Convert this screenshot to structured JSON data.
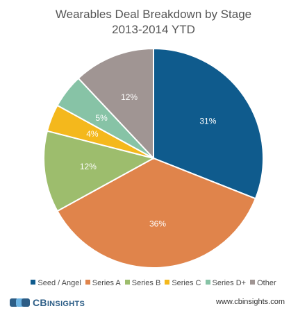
{
  "chart_data": {
    "type": "pie",
    "title_line1": "Wearables Deal Breakdown by Stage",
    "title_line2": "2013-2014 YTD",
    "slices": [
      {
        "label": "Seed / Angel",
        "value": 31,
        "display": "31%",
        "color": "#0f5b8d"
      },
      {
        "label": "Series A",
        "value": 36,
        "display": "36%",
        "color": "#e0844b"
      },
      {
        "label": "Series B",
        "value": 12,
        "display": "12%",
        "color": "#9dbd6d"
      },
      {
        "label": "Series C",
        "value": 4,
        "display": "4%",
        "color": "#f4b81c"
      },
      {
        "label": "Series D+",
        "value": 5,
        "display": "5%",
        "color": "#87c3a6"
      },
      {
        "label": "Other",
        "value": 12,
        "display": "12%",
        "color": "#a09593"
      }
    ],
    "start_angle": "12 o'clock, clockwise",
    "legend_position": "bottom"
  },
  "footer": {
    "brand_prefix": "CB",
    "brand_suffix": "INSIGHTS",
    "url": "www.cbinsights.com"
  },
  "colors": {
    "brand": "#2c5d86",
    "brand_accent": "#6cb4e3"
  }
}
